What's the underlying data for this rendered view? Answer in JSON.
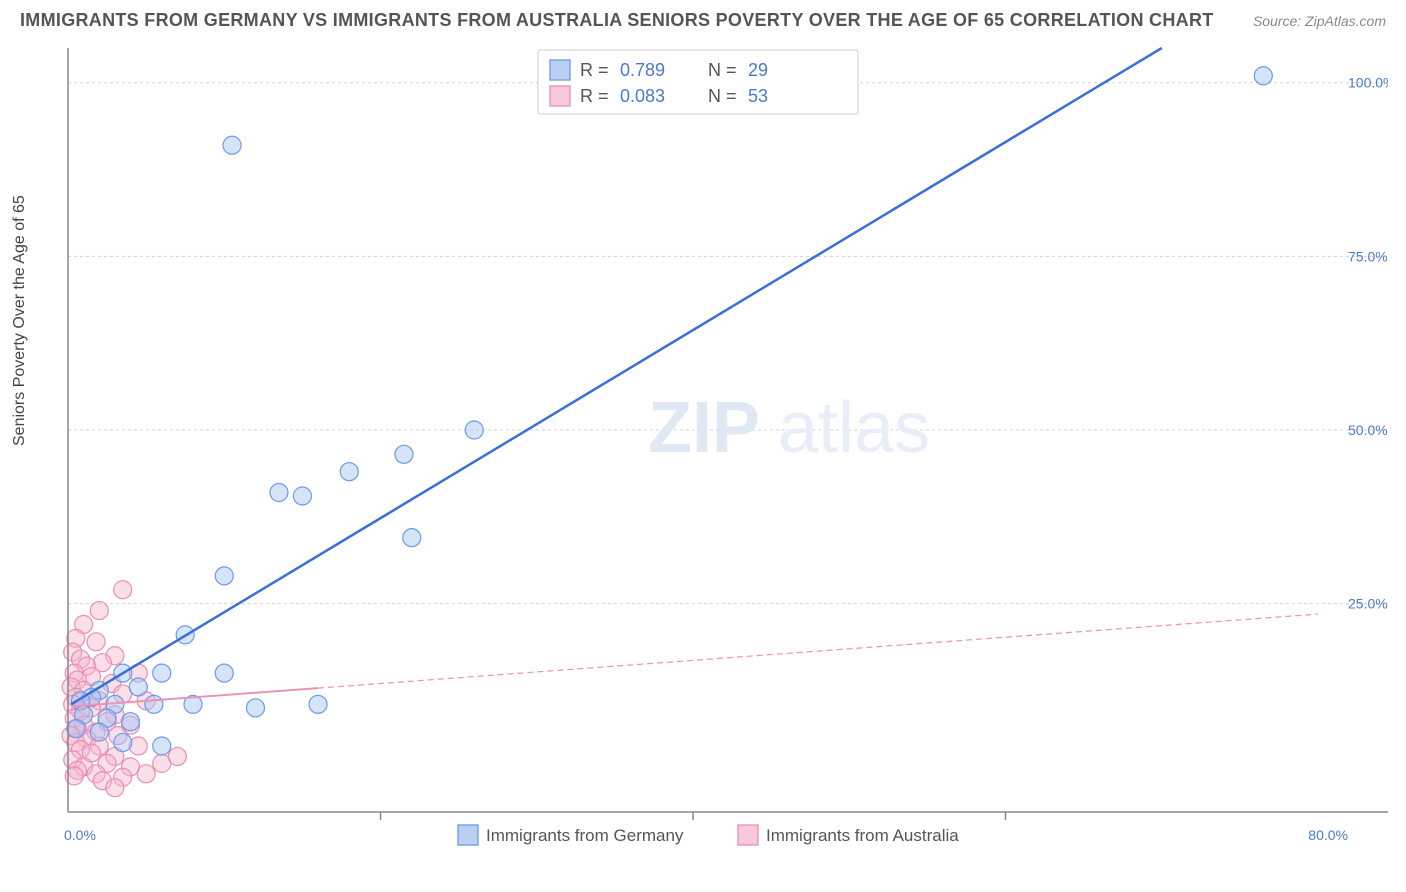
{
  "title": "IMMIGRANTS FROM GERMANY VS IMMIGRANTS FROM AUSTRALIA SENIORS POVERTY OVER THE AGE OF 65 CORRELATION CHART",
  "source": "Source: ZipAtlas.com",
  "ylabel": "Seniors Poverty Over the Age of 65",
  "watermark_zip": "ZIP",
  "watermark_atlas": "atlas",
  "chart": {
    "type": "scatter",
    "xlim": [
      0,
      80
    ],
    "ylim": [
      -5,
      105
    ],
    "xtick_labels": [
      "0.0%",
      "80.0%"
    ],
    "xtick_positions": [
      0,
      80
    ],
    "xtick_minor_positions": [
      20,
      40,
      60
    ],
    "ytick_labels": [
      "25.0%",
      "50.0%",
      "75.0%",
      "100.0%"
    ],
    "ytick_positions": [
      25,
      50,
      75,
      100
    ],
    "grid_color": "#d0d0d0",
    "axis_color": "#888888",
    "background_color": "#ffffff",
    "marker_radius": 9,
    "series": [
      {
        "name": "Immigrants from Germany",
        "label": "Immigrants from Germany",
        "stat_r": "0.789",
        "stat_n": "29",
        "color_fill": "#a3c4f3",
        "color_stroke": "#6a9be8",
        "trend_color": "#3a6fd8",
        "trend_style": "solid",
        "trend": {
          "x1": 0.2,
          "y1": 10.5,
          "x2": 70,
          "y2": 105
        },
        "points": [
          [
            76.5,
            101
          ],
          [
            10.5,
            91
          ],
          [
            26,
            50
          ],
          [
            21.5,
            46.5
          ],
          [
            18,
            44
          ],
          [
            15,
            40.5
          ],
          [
            13.5,
            41
          ],
          [
            22,
            34.5
          ],
          [
            10,
            29
          ],
          [
            7.5,
            20.5
          ],
          [
            3.5,
            15
          ],
          [
            6,
            15
          ],
          [
            10,
            15
          ],
          [
            4.5,
            13
          ],
          [
            2,
            12.5
          ],
          [
            1.5,
            11.5
          ],
          [
            0.8,
            11
          ],
          [
            3,
            10.5
          ],
          [
            5.5,
            10.5
          ],
          [
            8,
            10.5
          ],
          [
            12,
            10
          ],
          [
            16,
            10.5
          ],
          [
            1,
            9
          ],
          [
            2.5,
            8.5
          ],
          [
            4,
            8
          ],
          [
            0.5,
            7
          ],
          [
            2,
            6.5
          ],
          [
            3.5,
            5
          ],
          [
            6,
            4.5
          ]
        ]
      },
      {
        "name": "Immigrants from Australia",
        "label": "Immigrants from Australia",
        "stat_r": "0.083",
        "stat_n": "53",
        "color_fill": "#f5b5cc",
        "color_stroke": "#ea8fb3",
        "trend_color": "#e994b4",
        "trend_style": "dashed",
        "trend_solid_end_x": 16,
        "trend": {
          "x1": 0.2,
          "y1": 10.2,
          "x2": 80,
          "y2": 23.5
        },
        "points": [
          [
            3.5,
            27
          ],
          [
            2,
            24
          ],
          [
            1,
            22
          ],
          [
            0.5,
            20
          ],
          [
            1.8,
            19.5
          ],
          [
            0.3,
            18
          ],
          [
            3,
            17.5
          ],
          [
            0.8,
            17
          ],
          [
            2.2,
            16.5
          ],
          [
            1.2,
            16
          ],
          [
            0.4,
            15
          ],
          [
            4.5,
            15
          ],
          [
            1.5,
            14.5
          ],
          [
            0.6,
            14
          ],
          [
            2.8,
            13.5
          ],
          [
            0.2,
            13
          ],
          [
            1,
            12.5
          ],
          [
            3.5,
            12
          ],
          [
            0.5,
            11.5
          ],
          [
            2,
            11
          ],
          [
            5,
            11
          ],
          [
            0.3,
            10.5
          ],
          [
            1.5,
            10
          ],
          [
            0.8,
            9.5
          ],
          [
            3,
            9
          ],
          [
            0.4,
            8.5
          ],
          [
            2.5,
            8
          ],
          [
            1,
            7.5
          ],
          [
            4,
            7.5
          ],
          [
            0.6,
            7
          ],
          [
            1.8,
            6.5
          ],
          [
            0.2,
            6
          ],
          [
            3.2,
            6
          ],
          [
            1.2,
            5.5
          ],
          [
            0.5,
            5
          ],
          [
            2,
            4.5
          ],
          [
            4.5,
            4.5
          ],
          [
            0.8,
            4
          ],
          [
            1.5,
            3.5
          ],
          [
            3,
            3
          ],
          [
            0.3,
            2.5
          ],
          [
            2.5,
            2
          ],
          [
            1,
            1.5
          ],
          [
            4,
            1.5
          ],
          [
            0.6,
            1
          ],
          [
            6,
            2
          ],
          [
            5,
            0.5
          ],
          [
            3.5,
            0
          ],
          [
            7,
            3
          ],
          [
            1.8,
            0.5
          ],
          [
            0.4,
            0.2
          ],
          [
            2.2,
            -0.5
          ],
          [
            3,
            -1.5
          ]
        ]
      }
    ]
  },
  "legend": {
    "r_label": "R =",
    "n_label": "N ="
  }
}
